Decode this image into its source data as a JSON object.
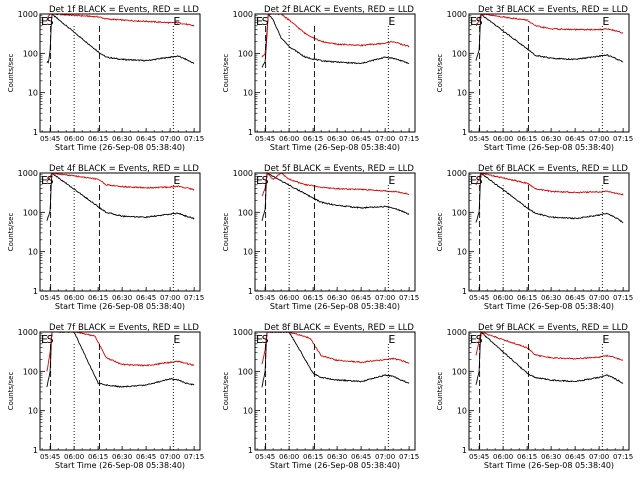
{
  "ylabel": "Counts/sec",
  "xlabel": "Start Time (26-Sep-08 05:38:40)",
  "yticks": [
    "1",
    "10",
    "100",
    "1000"
  ],
  "xticks": [
    "05:45",
    "06:00",
    "06:15",
    "06:30",
    "06:45",
    "07:00",
    "07:15"
  ],
  "marker_labels": {
    "E": "E",
    "S": "S"
  },
  "colors": {
    "black_series": "#000000",
    "red_series": "#e00000"
  },
  "chart_data": [
    {
      "type": "line",
      "title": "Det 1f BLACK = Events, RED = LLD",
      "ylim": [
        1,
        1000
      ],
      "yscale": "log",
      "xlim": [
        "05:38:40",
        "07:18:40"
      ],
      "series": [
        {
          "name": "BLACK",
          "color": "#000000",
          "x": [
            "05:43",
            "05:44",
            "05:45",
            "05:46",
            "06:15",
            "06:20",
            "06:30",
            "06:45",
            "07:00",
            "07:05",
            "07:10",
            "07:15"
          ],
          "y": [
            60,
            60,
            120,
            1000,
            110,
            80,
            70,
            65,
            80,
            85,
            70,
            55
          ]
        },
        {
          "name": "RED",
          "color": "#e00000",
          "x": [
            "05:43",
            "05:44",
            "05:45",
            "05:46",
            "06:15",
            "06:20",
            "06:30",
            "06:45",
            "07:00",
            "07:05",
            "07:10",
            "07:15"
          ],
          "y": [
            700,
            900,
            1000,
            1000,
            850,
            750,
            700,
            650,
            600,
            600,
            550,
            500
          ]
        }
      ]
    },
    {
      "type": "line",
      "title": "Det 2f BLACK = Events, RED = LLD",
      "ylim": [
        1,
        1000
      ],
      "yscale": "log",
      "xlim": [
        "05:38:40",
        "07:18:40"
      ],
      "series": [
        {
          "name": "BLACK",
          "color": "#000000",
          "x": [
            "05:43",
            "05:45",
            "05:47",
            "05:50",
            "05:55",
            "06:00",
            "06:10",
            "06:20",
            "06:30",
            "06:45",
            "07:00",
            "07:05",
            "07:10",
            "07:15"
          ],
          "y": [
            45,
            60,
            1000,
            700,
            250,
            150,
            80,
            65,
            60,
            55,
            80,
            75,
            65,
            55
          ]
        },
        {
          "name": "RED",
          "color": "#e00000",
          "x": [
            "05:43",
            "05:45",
            "05:47",
            "05:50",
            "05:55",
            "06:00",
            "06:10",
            "06:20",
            "06:30",
            "06:45",
            "07:00",
            "07:05",
            "07:10",
            "07:15"
          ],
          "y": [
            80,
            100,
            1000,
            1000,
            1000,
            700,
            320,
            200,
            170,
            160,
            180,
            200,
            170,
            150
          ]
        }
      ]
    },
    {
      "type": "line",
      "title": "Det 3f BLACK = Events, RED = LLD",
      "ylim": [
        1,
        1000
      ],
      "yscale": "log",
      "xlim": [
        "05:38:40",
        "07:18:40"
      ],
      "series": [
        {
          "name": "BLACK",
          "color": "#000000",
          "x": [
            "05:43",
            "05:45",
            "05:46",
            "06:15",
            "06:20",
            "06:30",
            "06:45",
            "07:00",
            "07:05",
            "07:10",
            "07:15"
          ],
          "y": [
            65,
            120,
            1000,
            130,
            90,
            75,
            70,
            85,
            90,
            75,
            60
          ]
        },
        {
          "name": "RED",
          "color": "#e00000",
          "x": [
            "05:43",
            "05:45",
            "05:46",
            "06:15",
            "06:20",
            "06:30",
            "06:45",
            "07:00",
            "07:05",
            "07:10",
            "07:15"
          ],
          "y": [
            500,
            700,
            1000,
            700,
            500,
            420,
            400,
            400,
            420,
            380,
            330
          ]
        }
      ]
    },
    {
      "type": "line",
      "title": "Det 4f BLACK = Events, RED = LLD",
      "ylim": [
        1,
        1000
      ],
      "yscale": "log",
      "xlim": [
        "05:38:40",
        "07:18:40"
      ],
      "series": [
        {
          "name": "BLACK",
          "color": "#000000",
          "x": [
            "05:43",
            "05:45",
            "05:46",
            "06:15",
            "06:20",
            "06:30",
            "06:45",
            "07:00",
            "07:05",
            "07:10",
            "07:15"
          ],
          "y": [
            60,
            110,
            1000,
            140,
            100,
            80,
            75,
            90,
            95,
            80,
            70
          ]
        },
        {
          "name": "RED",
          "color": "#e00000",
          "x": [
            "05:43",
            "05:45",
            "05:46",
            "06:15",
            "06:20",
            "06:30",
            "06:45",
            "07:00",
            "07:05",
            "07:10",
            "07:15"
          ],
          "y": [
            600,
            800,
            1000,
            700,
            500,
            450,
            420,
            440,
            460,
            420,
            380
          ]
        }
      ]
    },
    {
      "type": "line",
      "title": "Det 5f BLACK = Events, RED = LLD",
      "ylim": [
        1,
        1000
      ],
      "yscale": "log",
      "xlim": [
        "05:38:40",
        "07:18:40"
      ],
      "series": [
        {
          "name": "BLACK",
          "color": "#000000",
          "x": [
            "05:43",
            "05:45",
            "05:46",
            "06:15",
            "06:20",
            "06:30",
            "06:45",
            "07:00",
            "07:05",
            "07:10",
            "07:15"
          ],
          "y": [
            60,
            120,
            1000,
            230,
            180,
            150,
            130,
            140,
            130,
            110,
            90
          ]
        },
        {
          "name": "RED",
          "color": "#e00000",
          "x": [
            "05:43",
            "05:45",
            "05:46",
            "05:50",
            "05:55",
            "06:00",
            "06:10",
            "06:15",
            "06:20",
            "06:30",
            "06:45",
            "07:00",
            "07:05",
            "07:10",
            "07:15"
          ],
          "y": [
            250,
            400,
            1000,
            700,
            1000,
            700,
            500,
            480,
            430,
            400,
            380,
            350,
            340,
            320,
            290
          ]
        }
      ]
    },
    {
      "type": "line",
      "title": "Det 6f BLACK = Events, RED = LLD",
      "ylim": [
        1,
        1000
      ],
      "yscale": "log",
      "xlim": [
        "05:38:40",
        "07:18:40"
      ],
      "series": [
        {
          "name": "BLACK",
          "color": "#000000",
          "x": [
            "05:43",
            "05:45",
            "05:46",
            "06:15",
            "06:20",
            "06:30",
            "06:45",
            "07:00",
            "07:05",
            "07:10",
            "07:15"
          ],
          "y": [
            55,
            100,
            1000,
            130,
            95,
            75,
            70,
            85,
            95,
            75,
            55
          ]
        },
        {
          "name": "RED",
          "color": "#e00000",
          "x": [
            "05:43",
            "05:45",
            "05:46",
            "06:15",
            "06:20",
            "06:30",
            "06:45",
            "07:00",
            "07:05",
            "07:10",
            "07:15"
          ],
          "y": [
            500,
            700,
            1000,
            550,
            400,
            340,
            320,
            330,
            340,
            310,
            280
          ]
        }
      ]
    },
    {
      "type": "line",
      "title": "Det 7f BLACK = Events, RED = LLD",
      "ylim": [
        1,
        1000
      ],
      "yscale": "log",
      "xlim": [
        "05:38:40",
        "07:18:40"
      ],
      "series": [
        {
          "name": "BLACK",
          "color": "#000000",
          "x": [
            "05:43",
            "05:45",
            "05:46",
            "06:00",
            "06:15",
            "06:20",
            "06:30",
            "06:45",
            "07:00",
            "07:05",
            "07:10",
            "07:15"
          ],
          "y": [
            40,
            100,
            1000,
            1000,
            50,
            45,
            40,
            45,
            65,
            60,
            50,
            45
          ]
        },
        {
          "name": "RED",
          "color": "#e00000",
          "x": [
            "05:43",
            "05:45",
            "05:46",
            "06:00",
            "06:13",
            "06:20",
            "06:30",
            "06:45",
            "07:00",
            "07:05",
            "07:10",
            "07:15"
          ],
          "y": [
            100,
            300,
            1000,
            1000,
            800,
            220,
            150,
            140,
            170,
            180,
            160,
            140
          ]
        }
      ]
    },
    {
      "type": "line",
      "title": "Det 8f BLACK = Events, RED = LLD",
      "ylim": [
        1,
        1000
      ],
      "yscale": "log",
      "xlim": [
        "05:38:40",
        "07:18:40"
      ],
      "series": [
        {
          "name": "BLACK",
          "color": "#000000",
          "x": [
            "05:43",
            "05:45",
            "05:46",
            "06:00",
            "06:15",
            "06:20",
            "06:30",
            "06:45",
            "07:00",
            "07:05",
            "07:10",
            "07:15"
          ],
          "y": [
            40,
            100,
            1000,
            1000,
            90,
            70,
            60,
            55,
            80,
            75,
            60,
            50
          ]
        },
        {
          "name": "RED",
          "color": "#e00000",
          "x": [
            "05:43",
            "05:45",
            "05:46",
            "06:00",
            "06:13",
            "06:20",
            "06:30",
            "06:45",
            "07:00",
            "07:05",
            "07:10",
            "07:15"
          ],
          "y": [
            150,
            350,
            1000,
            1000,
            700,
            250,
            190,
            170,
            200,
            210,
            190,
            160
          ]
        }
      ]
    },
    {
      "type": "line",
      "title": "Det 9f BLACK = Events, RED = LLD",
      "ylim": [
        1,
        1000
      ],
      "yscale": "log",
      "xlim": [
        "05:38:40",
        "07:18:40"
      ],
      "series": [
        {
          "name": "BLACK",
          "color": "#000000",
          "x": [
            "05:43",
            "05:45",
            "05:46",
            "06:15",
            "06:20",
            "06:30",
            "06:45",
            "07:00",
            "07:05",
            "07:10",
            "07:15"
          ],
          "y": [
            45,
            100,
            1000,
            90,
            70,
            60,
            55,
            70,
            80,
            65,
            50
          ]
        },
        {
          "name": "RED",
          "color": "#e00000",
          "x": [
            "05:43",
            "05:45",
            "05:46",
            "06:15",
            "06:20",
            "06:30",
            "06:45",
            "07:00",
            "07:05",
            "07:10",
            "07:15"
          ],
          "y": [
            250,
            600,
            1000,
            400,
            260,
            220,
            210,
            230,
            250,
            220,
            190
          ]
        }
      ]
    }
  ]
}
